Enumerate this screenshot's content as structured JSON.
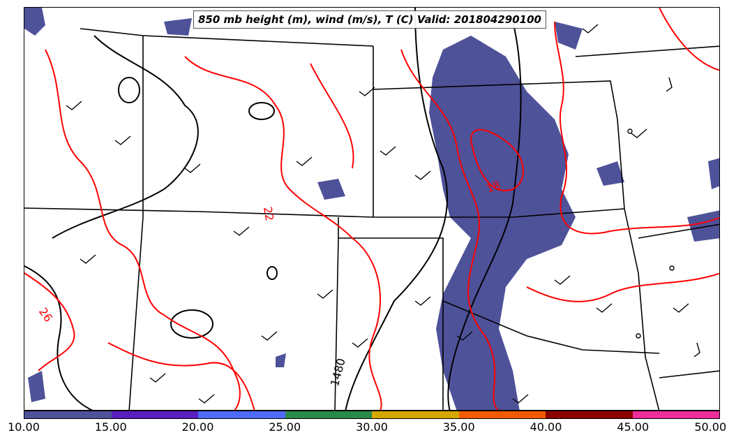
{
  "title": "850 mb height (m), wind (m/s), T (C) Valid: 201804290100",
  "colorbar": {
    "ticks": [
      "10.00",
      "15.00",
      "20.00",
      "25.00",
      "30.00",
      "35.00",
      "40.00",
      "45.00",
      "50.00"
    ],
    "colors": [
      "#4e5299",
      "#5b1fbf",
      "#4f6bff",
      "#2a8a4a",
      "#d4a800",
      "#f25a00",
      "#8b0000",
      "#ef2d9a"
    ]
  },
  "contour_labels": {
    "temp": [
      "18",
      "22",
      "26"
    ],
    "height": [
      "1480"
    ]
  },
  "colors": {
    "temperature": "#ff0000",
    "height": "#000000",
    "shade": "#4e5299",
    "borders": "#000000"
  }
}
